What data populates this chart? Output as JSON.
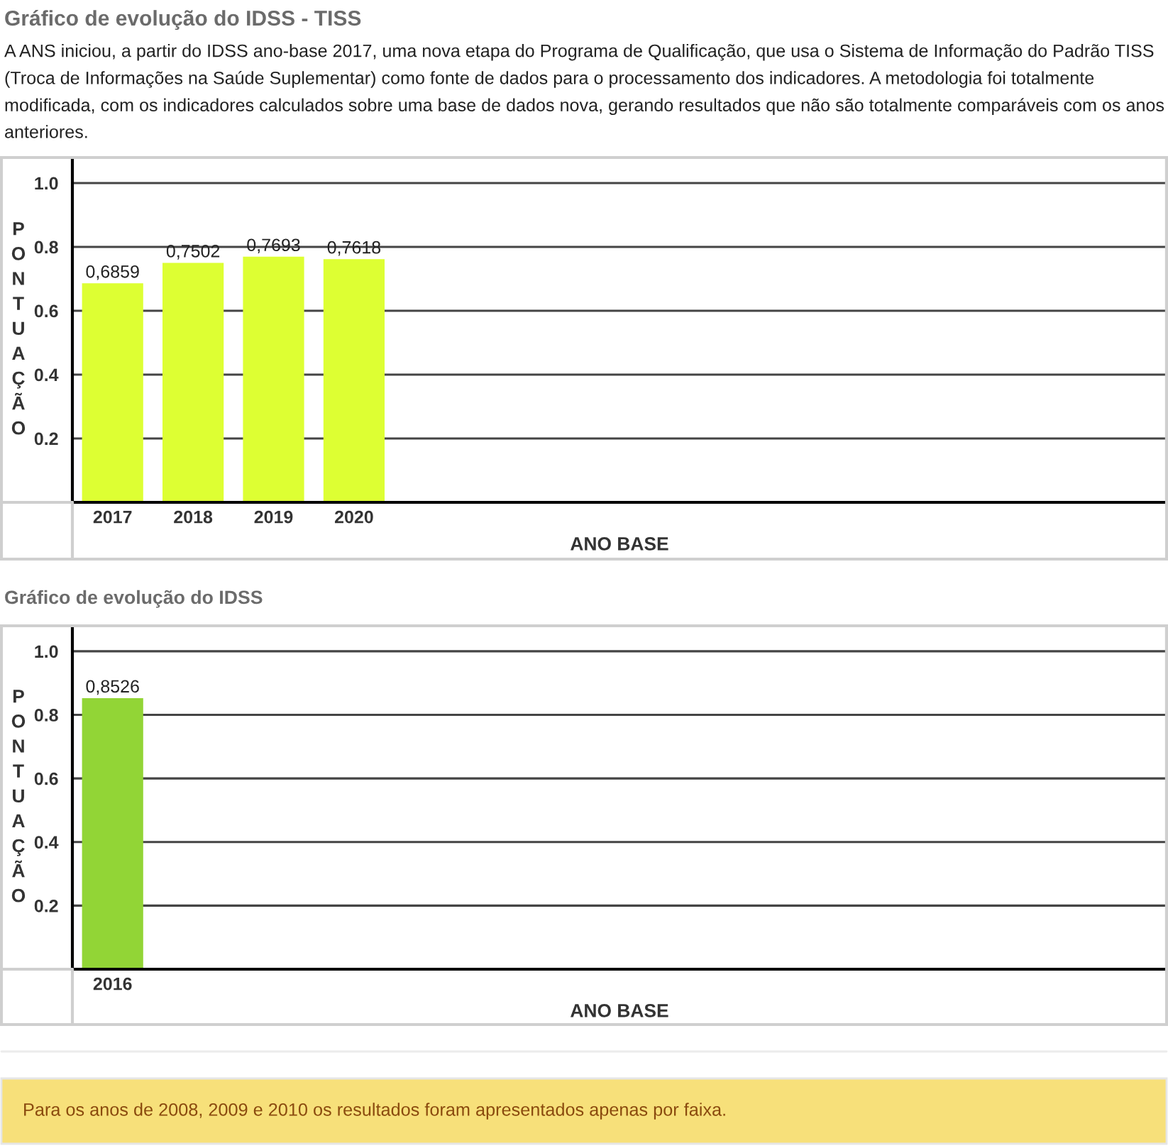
{
  "chart_data": [
    {
      "type": "bar",
      "title": "Gráfico de evolução do IDSS - TISS",
      "subtitle": "A ANS iniciou, a partir do IDSS ano-base 2017, uma nova etapa do Programa de Qualificação, que usa o Sistema de Informação do Padrão TISS (Troca de Informações na Saúde Suplementar) como fonte de dados para o processamento dos indicadores. A metodologia foi totalmente modificada, com os indicadores calculados sobre uma base de dados nova, gerando resultados que não são totalmente comparáveis com os anos anteriores.",
      "categories": [
        "2017",
        "2018",
        "2019",
        "2020",
        null,
        null,
        null,
        null,
        null,
        null,
        null,
        null,
        null,
        null
      ],
      "values": [
        0.6859,
        0.7502,
        0.7693,
        0.7618,
        null,
        null,
        null,
        null,
        null,
        null,
        null,
        null,
        null,
        null
      ],
      "value_labels": [
        "0,6859",
        "0,7502",
        "0,7693",
        "0,7618",
        null,
        null,
        null,
        null,
        null,
        null,
        null,
        null,
        null,
        null
      ],
      "color": "#ddff33",
      "xlabel": "ANO BASE",
      "ylabel": "PONTUAÇÃO",
      "ylim": [
        0,
        1.08
      ],
      "yticks": [
        {
          "value": 0.2,
          "label": "0.2"
        },
        {
          "value": 0.4,
          "label": "0.4"
        },
        {
          "value": 0.6,
          "label": "0.6"
        },
        {
          "value": 0.8,
          "label": "0.8"
        },
        {
          "value": 1,
          "label": "1.0"
        }
      ],
      "grid": "y"
    },
    {
      "type": "bar",
      "title": "Gráfico de evolução do IDSS",
      "categories": [
        "2016",
        null,
        null,
        null,
        null,
        null,
        null,
        null,
        null,
        null,
        null,
        null,
        null,
        null
      ],
      "values": [
        0.8526,
        null,
        null,
        null,
        null,
        null,
        null,
        null,
        null,
        null,
        null,
        null,
        null,
        null
      ],
      "value_labels": [
        "0,8526",
        null,
        null,
        null,
        null,
        null,
        null,
        null,
        null,
        null,
        null,
        null,
        null,
        null
      ],
      "color": "#92d536",
      "xlabel": "ANO BASE",
      "ylabel": "PONTUAÇÃO",
      "ylim": [
        0,
        1.08
      ],
      "yticks": [
        {
          "value": 0.2,
          "label": "0.2"
        },
        {
          "value": 0.4,
          "label": "0.4"
        },
        {
          "value": 0.6,
          "label": "0.6"
        },
        {
          "value": 0.8,
          "label": "0.8"
        },
        {
          "value": 1,
          "label": "1.0"
        }
      ],
      "grid": "y",
      "annotations": [
        "Para os anos de 2008, 2009 e 2010 os resultados foram apresentados apenas por faixa."
      ]
    }
  ]
}
